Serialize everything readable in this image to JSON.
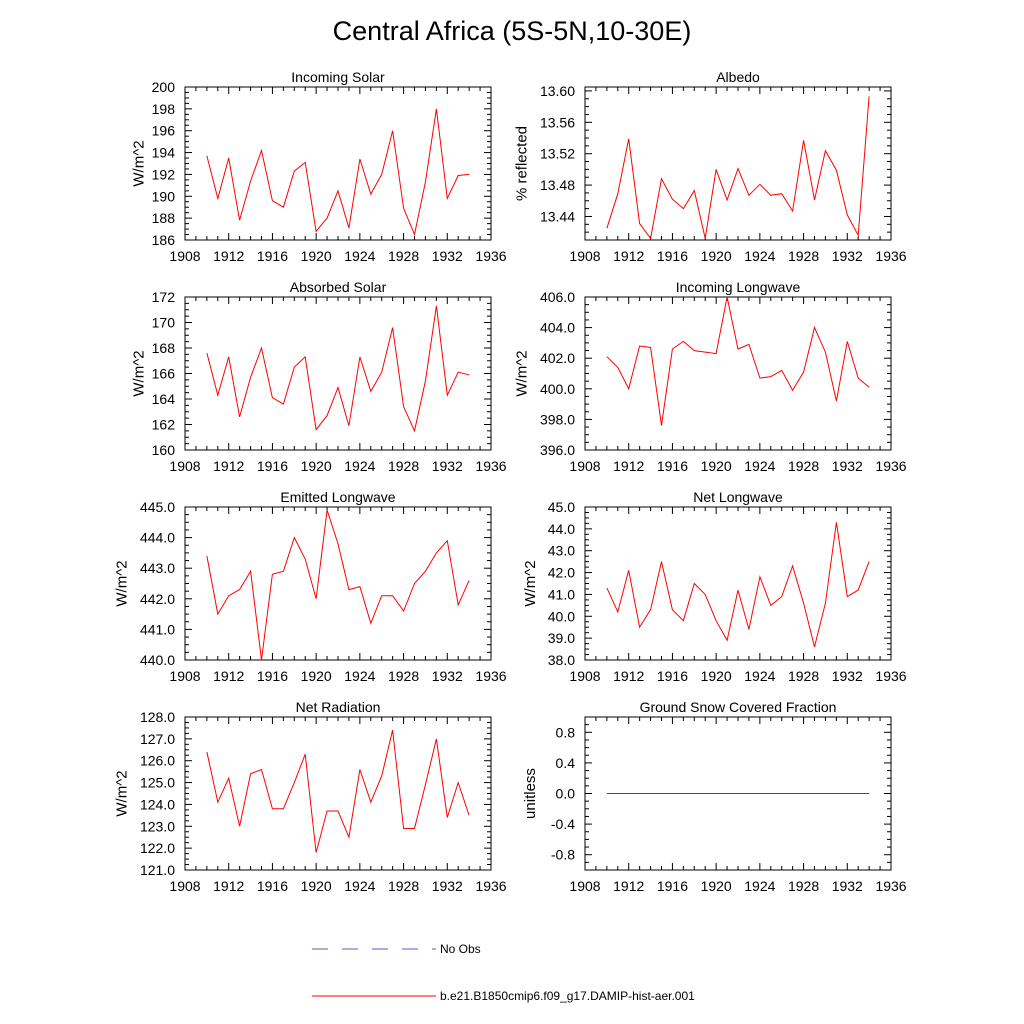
{
  "figure_title": "Central Africa (5S-5N,10-30E)",
  "colors": {
    "series": "#ff0000",
    "obs": "#4b5fc8",
    "axis": "#000000"
  },
  "legend": {
    "obs_label": "No Obs",
    "model_label": "b.e21.B1850cmip6.f09_g17.DAMIP-hist-aer.001"
  },
  "chart_data": [
    {
      "type": "line",
      "title": "Incoming Solar",
      "ylabel": "W/m^2",
      "xlim": [
        1908,
        1936
      ],
      "ylim": [
        186,
        200
      ],
      "xticks": [
        "1908",
        "1912",
        "1916",
        "1920",
        "1924",
        "1928",
        "1932",
        "1936"
      ],
      "yticks": [
        "186",
        "188",
        "190",
        "192",
        "194",
        "196",
        "198",
        "200"
      ],
      "x": [
        1910,
        1911,
        1912,
        1913,
        1914,
        1915,
        1916,
        1917,
        1918,
        1919,
        1920,
        1921,
        1922,
        1923,
        1924,
        1925,
        1926,
        1927,
        1928,
        1929,
        1930,
        1931,
        1932,
        1933,
        1934
      ],
      "series": [
        {
          "values": [
            193.7,
            189.8,
            193.5,
            187.8,
            191.4,
            194.2,
            189.6,
            189.0,
            192.3,
            193.1,
            186.8,
            188.0,
            190.5,
            187.1,
            193.4,
            190.2,
            192.0,
            196.0,
            188.9,
            186.5,
            191.3,
            198.0,
            189.8,
            191.9,
            192.0
          ]
        }
      ]
    },
    {
      "type": "line",
      "title": "Albedo",
      "ylabel": "% reflected",
      "xlim": [
        1908,
        1936
      ],
      "ylim": [
        13.41,
        13.605
      ],
      "xticks": [
        "1908",
        "1912",
        "1916",
        "1920",
        "1924",
        "1928",
        "1932",
        "1936"
      ],
      "yticks": [
        "13.44",
        "13.48",
        "13.52",
        "13.56",
        "13.60"
      ],
      "x": [
        1910,
        1911,
        1912,
        1913,
        1914,
        1915,
        1916,
        1917,
        1918,
        1919,
        1920,
        1921,
        1922,
        1923,
        1924,
        1925,
        1926,
        1927,
        1928,
        1929,
        1930,
        1931,
        1932,
        1933,
        1934
      ],
      "series": [
        {
          "values": [
            13.425,
            13.469,
            13.539,
            13.431,
            13.412,
            13.488,
            13.462,
            13.45,
            13.473,
            13.412,
            13.5,
            13.461,
            13.501,
            13.467,
            13.481,
            13.467,
            13.469,
            13.447,
            13.537,
            13.461,
            13.524,
            13.499,
            13.442,
            13.416,
            13.593
          ]
        }
      ]
    },
    {
      "type": "line",
      "title": "Absorbed Solar",
      "ylabel": "W/m^2",
      "xlim": [
        1908,
        1936
      ],
      "ylim": [
        160,
        172
      ],
      "xticks": [
        "1908",
        "1912",
        "1916",
        "1920",
        "1924",
        "1928",
        "1932",
        "1936"
      ],
      "yticks": [
        "160",
        "162",
        "164",
        "166",
        "168",
        "170",
        "172"
      ],
      "x": [
        1910,
        1911,
        1912,
        1913,
        1914,
        1915,
        1916,
        1917,
        1918,
        1919,
        1920,
        1921,
        1922,
        1923,
        1924,
        1925,
        1926,
        1927,
        1928,
        1929,
        1930,
        1931,
        1932,
        1933,
        1934
      ],
      "series": [
        {
          "values": [
            167.6,
            164.3,
            167.3,
            162.6,
            165.7,
            168.0,
            164.1,
            163.6,
            166.5,
            167.3,
            161.6,
            162.7,
            164.9,
            161.9,
            167.3,
            164.6,
            166.1,
            169.6,
            163.4,
            161.5,
            165.4,
            171.3,
            164.3,
            166.1,
            165.9
          ]
        }
      ]
    },
    {
      "type": "line",
      "title": "Incoming Longwave",
      "ylabel": "W/m^2",
      "xlim": [
        1908,
        1936
      ],
      "ylim": [
        396,
        406
      ],
      "xticks": [
        "1908",
        "1912",
        "1916",
        "1920",
        "1924",
        "1928",
        "1932",
        "1936"
      ],
      "yticks": [
        "396.0",
        "398.0",
        "400.0",
        "402.0",
        "404.0",
        "406.0"
      ],
      "x": [
        1910,
        1911,
        1912,
        1913,
        1914,
        1915,
        1916,
        1917,
        1918,
        1919,
        1920,
        1921,
        1922,
        1923,
        1924,
        1925,
        1926,
        1927,
        1928,
        1929,
        1930,
        1931,
        1932,
        1933,
        1934
      ],
      "series": [
        {
          "values": [
            402.1,
            401.4,
            400.0,
            402.8,
            402.7,
            397.6,
            402.6,
            403.1,
            402.5,
            402.4,
            402.3,
            406.0,
            402.6,
            402.9,
            400.7,
            400.8,
            401.2,
            399.9,
            401.1,
            404.0,
            402.4,
            399.2,
            403.1,
            400.7,
            400.1
          ]
        }
      ]
    },
    {
      "type": "line",
      "title": "Emitted Longwave",
      "ylabel": "W/m^2",
      "xlim": [
        1908,
        1936
      ],
      "ylim": [
        440,
        445
      ],
      "xticks": [
        "1908",
        "1912",
        "1916",
        "1920",
        "1924",
        "1928",
        "1932",
        "1936"
      ],
      "yticks": [
        "440.0",
        "441.0",
        "442.0",
        "443.0",
        "444.0",
        "445.0"
      ],
      "x": [
        1910,
        1911,
        1912,
        1913,
        1914,
        1915,
        1916,
        1917,
        1918,
        1919,
        1920,
        1921,
        1922,
        1923,
        1924,
        1925,
        1926,
        1927,
        1928,
        1929,
        1930,
        1931,
        1932,
        1933,
        1934
      ],
      "series": [
        {
          "values": [
            443.4,
            441.5,
            442.1,
            442.3,
            442.9,
            440.0,
            442.8,
            442.9,
            444.0,
            443.3,
            442.0,
            444.9,
            443.8,
            442.3,
            442.4,
            441.2,
            442.1,
            442.1,
            441.6,
            442.5,
            442.9,
            443.5,
            443.9,
            441.8,
            442.6
          ]
        }
      ]
    },
    {
      "type": "line",
      "title": "Net Longwave",
      "ylabel": "W/m^2",
      "xlim": [
        1908,
        1936
      ],
      "ylim": [
        38,
        45
      ],
      "xticks": [
        "1908",
        "1912",
        "1916",
        "1920",
        "1924",
        "1928",
        "1932",
        "1936"
      ],
      "yticks": [
        "38.0",
        "39.0",
        "40.0",
        "41.0",
        "42.0",
        "43.0",
        "44.0",
        "45.0"
      ],
      "x": [
        1910,
        1911,
        1912,
        1913,
        1914,
        1915,
        1916,
        1917,
        1918,
        1919,
        1920,
        1921,
        1922,
        1923,
        1924,
        1925,
        1926,
        1927,
        1928,
        1929,
        1930,
        1931,
        1932,
        1933,
        1934
      ],
      "series": [
        {
          "values": [
            41.3,
            40.2,
            42.1,
            39.5,
            40.3,
            42.5,
            40.3,
            39.8,
            41.5,
            41.0,
            39.8,
            38.9,
            41.2,
            39.4,
            41.8,
            40.5,
            40.9,
            42.3,
            40.6,
            38.6,
            40.6,
            44.3,
            40.9,
            41.2,
            42.5
          ]
        }
      ]
    },
    {
      "type": "line",
      "title": "Net Radiation",
      "ylabel": "W/m^2",
      "xlim": [
        1908,
        1936
      ],
      "ylim": [
        121,
        128
      ],
      "xticks": [
        "1908",
        "1912",
        "1916",
        "1920",
        "1924",
        "1928",
        "1932",
        "1936"
      ],
      "yticks": [
        "121.0",
        "122.0",
        "123.0",
        "124.0",
        "125.0",
        "126.0",
        "127.0",
        "128.0"
      ],
      "x": [
        1910,
        1911,
        1912,
        1913,
        1914,
        1915,
        1916,
        1917,
        1918,
        1919,
        1920,
        1921,
        1922,
        1923,
        1924,
        1925,
        1926,
        1927,
        1928,
        1929,
        1930,
        1931,
        1932,
        1933,
        1934
      ],
      "series": [
        {
          "values": [
            126.4,
            124.1,
            125.2,
            123.0,
            125.4,
            125.6,
            123.8,
            123.8,
            125.0,
            126.3,
            121.8,
            123.7,
            123.7,
            122.5,
            125.6,
            124.1,
            125.3,
            127.4,
            122.9,
            122.9,
            124.9,
            127.0,
            123.4,
            125.0,
            123.5
          ]
        }
      ]
    },
    {
      "type": "line",
      "title": "Ground Snow Covered Fraction",
      "ylabel": "unitless",
      "xlim": [
        1908,
        1936
      ],
      "ylim": [
        -1.0,
        1.0
      ],
      "xticks": [
        "1908",
        "1912",
        "1916",
        "1920",
        "1924",
        "1928",
        "1932",
        "1936"
      ],
      "yticks": [
        "-0.8",
        "-0.4",
        "0.0",
        "0.4",
        "0.8"
      ],
      "x": [
        1910,
        1911,
        1912,
        1913,
        1914,
        1915,
        1916,
        1917,
        1918,
        1919,
        1920,
        1921,
        1922,
        1923,
        1924,
        1925,
        1926,
        1927,
        1928,
        1929,
        1930,
        1931,
        1932,
        1933,
        1934
      ],
      "series": [
        {
          "values": [
            0,
            0,
            0,
            0,
            0,
            0,
            0,
            0,
            0,
            0,
            0,
            0,
            0,
            0,
            0,
            0,
            0,
            0,
            0,
            0,
            0,
            0,
            0,
            0,
            0
          ]
        }
      ]
    }
  ]
}
